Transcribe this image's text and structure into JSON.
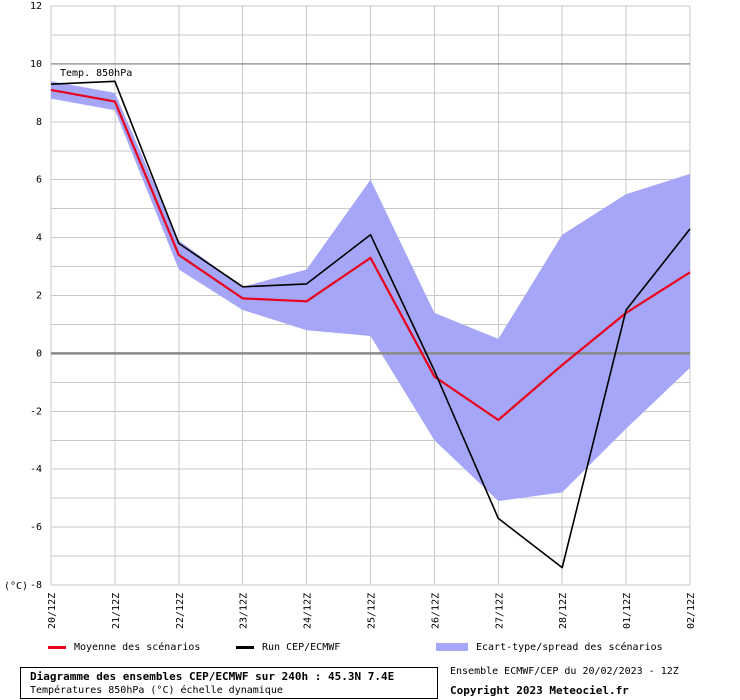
{
  "chart_data": {
    "type": "line",
    "annotation": "Temp. 850hPa",
    "y_unit": "(°C)",
    "ylim": [
      -8,
      12
    ],
    "yticks": [
      "12",
      "10",
      "8",
      "6",
      "4",
      "2",
      "0",
      "-2",
      "-4",
      "-6",
      "-8"
    ],
    "grid": true,
    "categories": [
      "20/12Z",
      "21/12Z",
      "22/12Z",
      "23/12Z",
      "24/12Z",
      "25/12Z",
      "26/12Z",
      "27/12Z",
      "28/12Z",
      "01/12Z",
      "02/12Z"
    ],
    "series": [
      {
        "name": "Moyenne des scénarios",
        "color": "#e8001c",
        "values": [
          9.1,
          8.7,
          3.4,
          1.9,
          1.8,
          3.3,
          -0.8,
          -2.3,
          -0.4,
          1.4,
          2.8
        ]
      },
      {
        "name": "Run CEP/ECMWF",
        "color": "#000000",
        "values": [
          9.3,
          9.4,
          3.8,
          2.3,
          2.4,
          4.1,
          -0.6,
          -5.7,
          -7.4,
          1.5,
          4.3
        ]
      },
      {
        "name": "Ecart-type/spread des scénarios",
        "color": "#a6a6f8",
        "type": "band",
        "upper": [
          9.4,
          9.0,
          3.9,
          2.3,
          2.9,
          6.0,
          1.4,
          0.5,
          4.1,
          5.5,
          6.2
        ],
        "lower": [
          8.8,
          8.4,
          2.9,
          1.5,
          0.8,
          0.6,
          -3.0,
          -5.1,
          -4.8,
          -2.6,
          -0.5
        ]
      }
    ]
  },
  "footer": {
    "title": "Diagramme des ensembles CEP/ECMWF sur 240h : 45.3N 7.4E",
    "subtitle": "Températures 850hPa (°C) échelle dynamique",
    "run_info": "Ensemble ECMWF/CEP du 20/02/2023 - 12Z",
    "copyright": "Copyright 2023 Meteociel.fr"
  }
}
